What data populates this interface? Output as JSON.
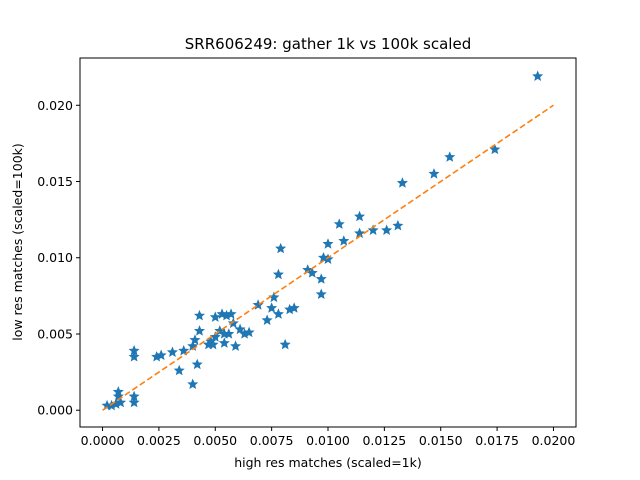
{
  "chart_data": {
    "type": "scatter",
    "title": "SRR606249: gather 1k vs 100k scaled",
    "xlabel": "high res matches (scaled=1k)",
    "ylabel": "low res matches (scaled=100k)",
    "xlim": [
      -0.001,
      0.021
    ],
    "ylim": [
      -0.0011,
      0.0231
    ],
    "xticks": [
      0.0,
      0.0025,
      0.005,
      0.0075,
      0.01,
      0.0125,
      0.015,
      0.0175,
      0.02
    ],
    "xtick_labels": [
      "0.0000",
      "0.0025",
      "0.0050",
      "0.0075",
      "0.0100",
      "0.0125",
      "0.0150",
      "0.0175",
      "0.0200"
    ],
    "yticks": [
      0.0,
      0.005,
      0.01,
      0.015,
      0.02
    ],
    "ytick_labels": [
      "0.000",
      "0.005",
      "0.010",
      "0.015",
      "0.020"
    ],
    "grid": false,
    "series": [
      {
        "marker": "star",
        "color": "#1f77b4",
        "points": [
          [
            0.0002,
            0.0003
          ],
          [
            0.0004,
            0.0003
          ],
          [
            0.0006,
            0.0004
          ],
          [
            0.0007,
            0.0012
          ],
          [
            0.0008,
            0.0005
          ],
          [
            0.0007,
            0.0009
          ],
          [
            0.0014,
            0.0005
          ],
          [
            0.0014,
            0.0009
          ],
          [
            0.0014,
            0.0035
          ],
          [
            0.0014,
            0.0039
          ],
          [
            0.0024,
            0.0035
          ],
          [
            0.0026,
            0.0036
          ],
          [
            0.0031,
            0.0038
          ],
          [
            0.0034,
            0.0026
          ],
          [
            0.0036,
            0.0039
          ],
          [
            0.004,
            0.0017
          ],
          [
            0.004,
            0.0042
          ],
          [
            0.0041,
            0.0046
          ],
          [
            0.0042,
            0.003
          ],
          [
            0.0043,
            0.0052
          ],
          [
            0.0043,
            0.0062
          ],
          [
            0.0047,
            0.0043
          ],
          [
            0.0048,
            0.0045
          ],
          [
            0.0049,
            0.0043
          ],
          [
            0.005,
            0.0048
          ],
          [
            0.005,
            0.0061
          ],
          [
            0.0052,
            0.0052
          ],
          [
            0.0053,
            0.0063
          ],
          [
            0.0054,
            0.0044
          ],
          [
            0.0054,
            0.005
          ],
          [
            0.0055,
            0.0062
          ],
          [
            0.0056,
            0.005
          ],
          [
            0.0057,
            0.0063
          ],
          [
            0.0058,
            0.0057
          ],
          [
            0.0059,
            0.0042
          ],
          [
            0.0061,
            0.0053
          ],
          [
            0.0063,
            0.005
          ],
          [
            0.0065,
            0.0051
          ],
          [
            0.0069,
            0.0069
          ],
          [
            0.0073,
            0.0059
          ],
          [
            0.0075,
            0.0067
          ],
          [
            0.0076,
            0.0074
          ],
          [
            0.0078,
            0.0089
          ],
          [
            0.0078,
            0.0063
          ],
          [
            0.0079,
            0.0106
          ],
          [
            0.0081,
            0.0043
          ],
          [
            0.0083,
            0.0066
          ],
          [
            0.0085,
            0.0067
          ],
          [
            0.0091,
            0.0092
          ],
          [
            0.0093,
            0.009
          ],
          [
            0.0097,
            0.0076
          ],
          [
            0.0097,
            0.0086
          ],
          [
            0.0098,
            0.01
          ],
          [
            0.01,
            0.0099
          ],
          [
            0.01,
            0.0109
          ],
          [
            0.0105,
            0.0122
          ],
          [
            0.0107,
            0.0111
          ],
          [
            0.0114,
            0.0116
          ],
          [
            0.0114,
            0.0127
          ],
          [
            0.012,
            0.0118
          ],
          [
            0.0126,
            0.0118
          ],
          [
            0.0131,
            0.0121
          ],
          [
            0.0133,
            0.0149
          ],
          [
            0.0147,
            0.0155
          ],
          [
            0.0154,
            0.0166
          ],
          [
            0.0174,
            0.0171
          ],
          [
            0.0193,
            0.0219
          ]
        ]
      },
      {
        "style": "dashed-line",
        "color": "#ff7f0e",
        "points": [
          [
            0.0,
            0.0
          ],
          [
            0.02,
            0.02
          ]
        ]
      }
    ]
  }
}
